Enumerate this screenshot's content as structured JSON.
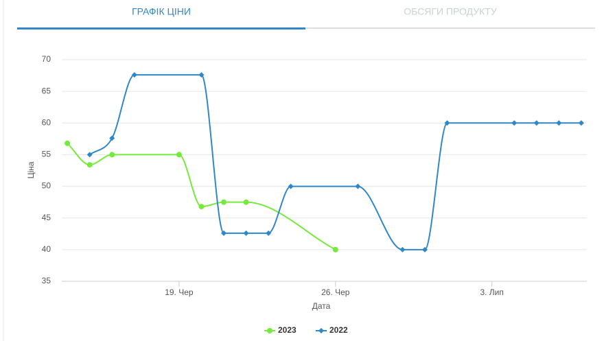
{
  "tabs": [
    {
      "label": "ГРАФІК ЦІНИ",
      "active": true
    },
    {
      "label": "ОБСЯГИ ПРОДУКТУ",
      "active": false
    }
  ],
  "chart_data": {
    "type": "line",
    "xlabel": "Дата",
    "ylabel": "Ціна",
    "ylim": [
      35,
      70
    ],
    "yticks": [
      35,
      40,
      45,
      50,
      55,
      60,
      65,
      70
    ],
    "xlim": [
      13.75,
      37.25
    ],
    "xticks": [
      {
        "value": 19,
        "label": "19. Чер"
      },
      {
        "value": 26,
        "label": "26. Чер"
      },
      {
        "value": 33,
        "label": "3. Лип"
      }
    ],
    "grid": true,
    "legend": "bottom",
    "series": [
      {
        "name": "2023",
        "color": "#76ea3c",
        "marker": "circle",
        "x": [
          14,
          15,
          16,
          19,
          20,
          21,
          22,
          26
        ],
        "values": [
          56.8,
          53.4,
          55,
          55,
          46.8,
          47.5,
          47.5,
          40
        ]
      },
      {
        "name": "2022",
        "color": "#2f87c9",
        "marker": "diamond",
        "x": [
          15,
          16,
          17,
          20,
          21,
          22,
          23,
          24,
          27,
          29,
          30,
          31,
          34,
          35,
          36,
          37
        ],
        "values": [
          55,
          57.6,
          67.6,
          67.6,
          42.6,
          42.6,
          42.6,
          50,
          50,
          40,
          40,
          60,
          60,
          60,
          60,
          60
        ]
      }
    ]
  }
}
